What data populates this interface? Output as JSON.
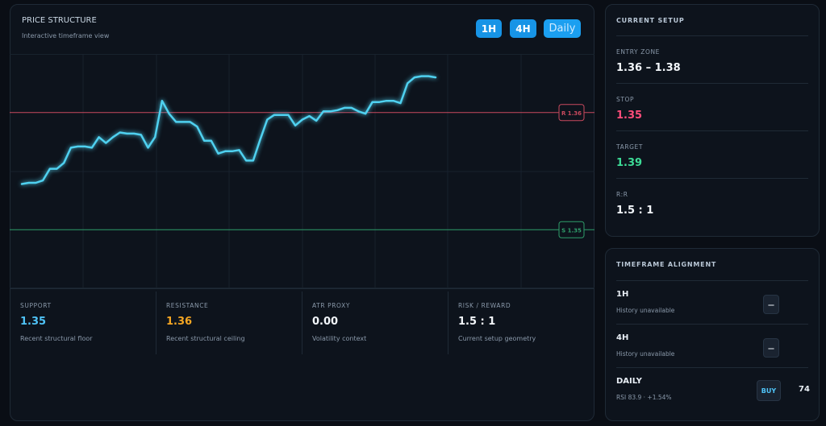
{
  "header": {
    "title": "PRICE STRUCTURE",
    "subtitle": "Interactive timeframe view"
  },
  "timeframe_buttons": [
    "1H",
    "4H",
    "Daily"
  ],
  "chart": {
    "type": "line",
    "color": "#4fd1f0",
    "ylim": [
      1.345,
      1.365
    ],
    "values": [
      1.3539,
      1.354,
      1.354,
      1.3542,
      1.3552,
      1.3552,
      1.3557,
      1.357,
      1.3571,
      1.3571,
      1.357,
      1.3579,
      1.3574,
      1.3579,
      1.3583,
      1.3582,
      1.3582,
      1.3581,
      1.357,
      1.3579,
      1.361,
      1.3599,
      1.3592,
      1.3592,
      1.3592,
      1.3588,
      1.3576,
      1.3576,
      1.3565,
      1.3567,
      1.3567,
      1.3568,
      1.3559,
      1.3559,
      1.3577,
      1.3594,
      1.3598,
      1.3598,
      1.3598,
      1.3589,
      1.3594,
      1.3597,
      1.3593,
      1.3601,
      1.3601,
      1.3602,
      1.3604,
      1.3604,
      1.3601,
      1.3599,
      1.3609,
      1.3609,
      1.361,
      1.361,
      1.3608,
      1.3625,
      1.363,
      1.3631,
      1.3631,
      1.363
    ],
    "levels": [
      {
        "label": "R 1.36",
        "value": 1.36,
        "color": "#c94a5e"
      },
      {
        "label": "S 1.35",
        "value": 1.35,
        "color": "#2f9e6a"
      }
    ]
  },
  "stats": [
    {
      "label": "SUPPORT",
      "value": "1.35",
      "note": "Recent structural floor"
    },
    {
      "label": "RESISTANCE",
      "value": "1.36",
      "note": "Recent structural ceiling"
    },
    {
      "label": "ATR PROXY",
      "value": "0.00",
      "note": "Volatility context"
    },
    {
      "label": "RISK / REWARD",
      "value": "1.5 : 1",
      "note": "Current setup geometry"
    }
  ],
  "current_setup": {
    "title": "CURRENT SETUP",
    "items": [
      {
        "label": "ENTRY ZONE",
        "value": "1.36 – 1.38"
      },
      {
        "label": "STOP",
        "value": "1.35"
      },
      {
        "label": "TARGET",
        "value": "1.39"
      },
      {
        "label": "R:R",
        "value": "1.5 : 1"
      }
    ]
  },
  "timeframe_alignment": {
    "title": "TIMEFRAME ALIGNMENT",
    "rows": [
      {
        "name": "1H",
        "note": "History unavailable",
        "badge": "—"
      },
      {
        "name": "4H",
        "note": "History unavailable",
        "badge": "—"
      },
      {
        "name": "DAILY",
        "note": "RSI 83.9 · +1.54%",
        "badge": "BUY",
        "score": 74
      }
    ]
  }
}
